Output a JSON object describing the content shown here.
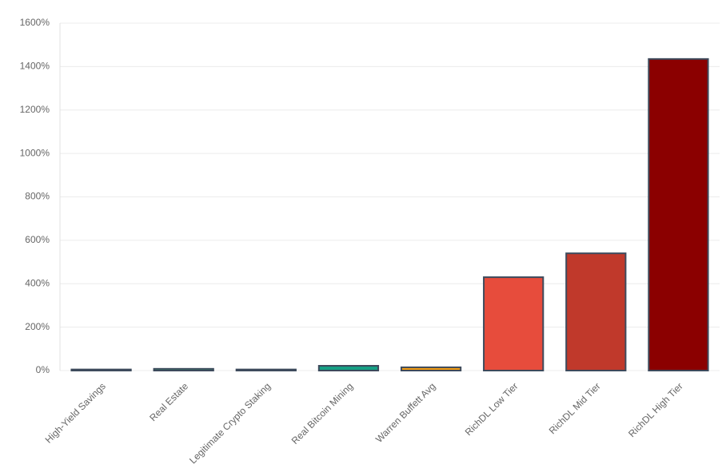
{
  "chart_data": {
    "type": "bar",
    "categories": [
      "High-Yield Savings",
      "Real Estate",
      "Legitimate Crypto Staking",
      "Real Bitcoin Mining",
      "Warren Buffett Avg",
      "RichDL Low Tier",
      "RichDL Mid Tier",
      "RichDL High Tier"
    ],
    "values": [
      5,
      8,
      5,
      22,
      15,
      430,
      540,
      1435
    ],
    "colors": [
      "#7f8c8d",
      "#2ecc71",
      "#3498db",
      "#16a085",
      "#f39c12",
      "#e74c3c",
      "#c0392b",
      "#8b0000"
    ],
    "ylim": [
      0,
      1600
    ],
    "yticks": [
      {
        "value": 0,
        "label": "0%"
      },
      {
        "value": 200,
        "label": "200%"
      },
      {
        "value": 400,
        "label": "400%"
      },
      {
        "value": 600,
        "label": "600%"
      },
      {
        "value": 800,
        "label": "800%"
      },
      {
        "value": 1000,
        "label": "1000%"
      },
      {
        "value": 1200,
        "label": "1200%"
      },
      {
        "value": 1400,
        "label": "1400%"
      },
      {
        "value": 1600,
        "label": "1600%"
      }
    ],
    "grid": true
  }
}
